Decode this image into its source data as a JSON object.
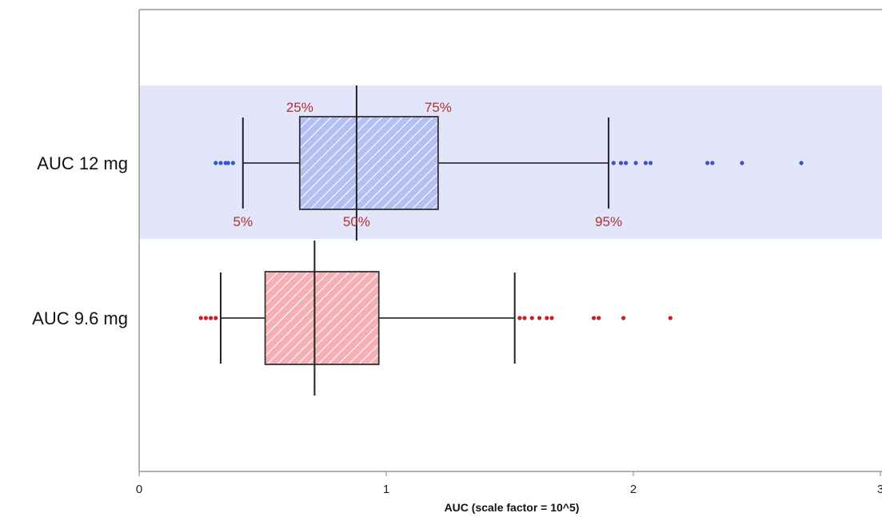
{
  "chart_data": {
    "type": "boxplot",
    "orientation": "horizontal",
    "xlabel": "AUC  (scale factor = 10^5)",
    "xlim": [
      0,
      3
    ],
    "xticks": [
      {
        "value": 0,
        "label": "0"
      },
      {
        "value": 1,
        "label": "1"
      },
      {
        "value": 2,
        "label": "2"
      },
      {
        "value": 3,
        "label": "3"
      }
    ],
    "grid": false,
    "series": [
      {
        "name": "AUC 12 mg",
        "color": "#3a55c8",
        "box_fill": "#b4c0f4",
        "band": "#e3e6fb",
        "p5": 0.42,
        "p25": 0.65,
        "p50": 0.88,
        "p75": 1.21,
        "p95": 1.9,
        "outliers": [
          0.31,
          0.33,
          0.35,
          0.36,
          0.38,
          1.92,
          1.95,
          1.97,
          2.01,
          2.05,
          2.07,
          2.3,
          2.32,
          2.44,
          2.68
        ],
        "percentile_labels": [
          {
            "text": "25%",
            "stat": "p25",
            "pos": "above"
          },
          {
            "text": "75%",
            "stat": "p75",
            "pos": "above"
          },
          {
            "text": "5%",
            "stat": "p5",
            "pos": "below"
          },
          {
            "text": "50%",
            "stat": "p50",
            "pos": "below"
          },
          {
            "text": "95%",
            "stat": "p95",
            "pos": "below"
          }
        ]
      },
      {
        "name": "AUC 9.6 mg",
        "color": "#c8202a",
        "box_fill": "#f6b0b4",
        "band": null,
        "p5": 0.33,
        "p25": 0.51,
        "p50": 0.71,
        "p75": 0.97,
        "p95": 1.52,
        "outliers": [
          0.25,
          0.27,
          0.29,
          0.31,
          1.54,
          1.56,
          1.59,
          1.62,
          1.65,
          1.67,
          1.84,
          1.86,
          1.96,
          2.15
        ],
        "percentile_labels": []
      }
    ]
  }
}
